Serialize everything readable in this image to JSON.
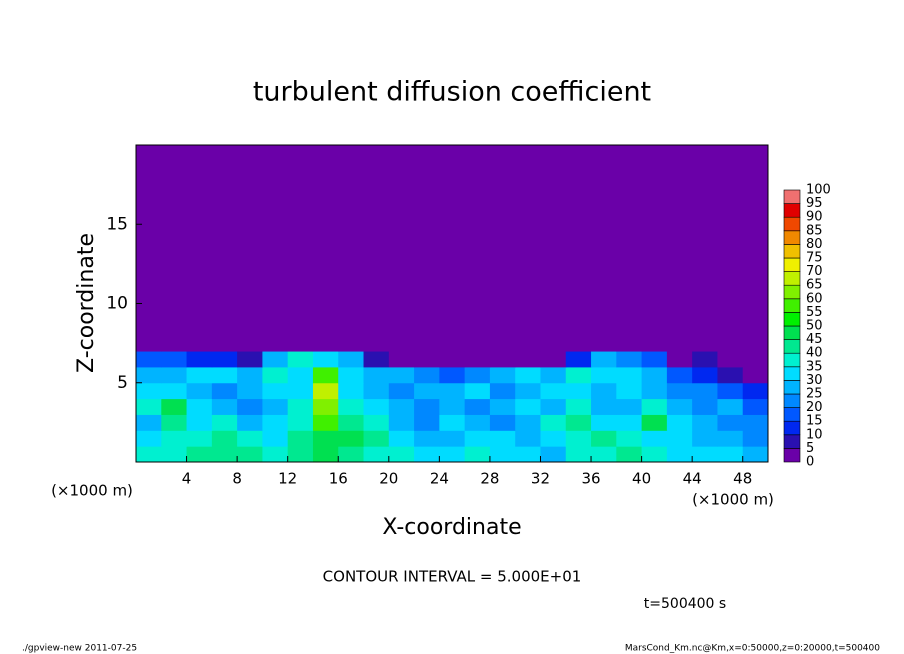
{
  "chart_data": {
    "type": "heatmap",
    "title": "turbulent diffusion coefficient",
    "x_label": "X-coordinate",
    "y_label": "Z-coordinate",
    "x_unit": "(×1000 m)",
    "y_unit": "(×1000 m)",
    "xlim": [
      0,
      50
    ],
    "ylim": [
      0,
      20
    ],
    "xticks": [
      4,
      8,
      12,
      16,
      20,
      24,
      28,
      32,
      36,
      40,
      44,
      48
    ],
    "yticks": [
      5,
      10,
      15
    ],
    "xbins": [
      0,
      2,
      4,
      6,
      8,
      10,
      12,
      14,
      16,
      18,
      20,
      22,
      24,
      26,
      28,
      30,
      32,
      34,
      36,
      38,
      40,
      42,
      44,
      46,
      48,
      50
    ],
    "ybins": [
      0,
      1,
      2,
      3,
      4,
      5,
      6,
      7,
      20
    ],
    "values": [
      [
        35,
        38,
        40,
        42,
        40,
        38,
        42,
        45,
        40,
        38,
        35,
        30,
        33,
        38,
        32,
        30,
        28,
        35,
        38,
        40,
        36,
        34,
        32,
        30,
        28
      ],
      [
        30,
        35,
        38,
        40,
        35,
        32,
        40,
        48,
        45,
        40,
        30,
        25,
        28,
        32,
        30,
        25,
        30,
        38,
        42,
        35,
        30,
        32,
        28,
        25,
        22
      ],
      [
        28,
        40,
        30,
        35,
        28,
        30,
        38,
        55,
        42,
        38,
        28,
        22,
        30,
        28,
        20,
        28,
        35,
        40,
        30,
        30,
        45,
        30,
        25,
        22,
        20
      ],
      [
        35,
        45,
        30,
        25,
        22,
        28,
        35,
        60,
        35,
        30,
        25,
        20,
        25,
        22,
        25,
        30,
        28,
        35,
        25,
        28,
        35,
        25,
        20,
        25,
        18
      ],
      [
        30,
        32,
        28,
        22,
        25,
        30,
        32,
        65,
        30,
        28,
        22,
        25,
        28,
        30,
        22,
        25,
        30,
        30,
        28,
        30,
        25,
        20,
        22,
        15,
        12
      ],
      [
        25,
        28,
        30,
        32,
        28,
        35,
        30,
        55,
        30,
        25,
        28,
        22,
        15,
        20,
        28,
        30,
        25,
        35,
        30,
        32,
        28,
        15,
        10,
        5,
        2
      ],
      [
        15,
        18,
        10,
        12,
        8,
        25,
        35,
        30,
        25,
        8,
        2,
        0,
        3,
        0,
        0,
        2,
        0,
        10,
        25,
        20,
        15,
        2,
        8,
        2,
        0
      ],
      [
        0,
        0,
        0,
        0,
        0,
        0,
        0,
        0,
        0,
        0,
        0,
        0,
        0,
        0,
        0,
        0,
        0,
        0,
        0,
        0,
        0,
        0,
        0,
        0,
        0
      ]
    ],
    "levels": [
      0,
      5,
      10,
      15,
      20,
      25,
      30,
      35,
      40,
      45,
      50,
      55,
      60,
      65,
      70,
      75,
      80,
      85,
      90,
      95,
      100
    ],
    "colors": [
      "#6a00a8",
      "#2a10b0",
      "#0028f0",
      "#0058ff",
      "#0088ff",
      "#00b4ff",
      "#00dcff",
      "#00f0d0",
      "#00e890",
      "#00e050",
      "#00f000",
      "#40f000",
      "#80f000",
      "#c0f000",
      "#f0f000",
      "#f0c000",
      "#f08800",
      "#f04800",
      "#e00000",
      "#f07070"
    ],
    "contour_interval": "CONTOUR INTERVAL = 5.000E+01",
    "time": "t=500400 s",
    "footer_left": "./gpview-new  2011-07-25",
    "footer_right": "MarsCond_Km.nc@Km,x=0:50000,z=0:20000,t=500400"
  }
}
